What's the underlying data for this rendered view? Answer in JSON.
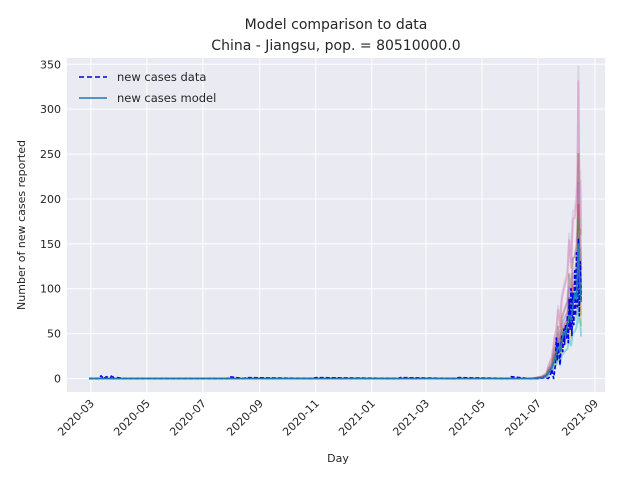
{
  "chart_data": {
    "type": "line",
    "title": "Model comparison to data",
    "subtitle": "China - Jiangsu, pop. = 80510000.0",
    "xlabel": "Day",
    "ylabel": "Number of new cases reported",
    "ylim": [
      -15,
      357
    ],
    "xlim": [
      "2020-02-04",
      "2021-09-12"
    ],
    "grid": true,
    "legend_position": "top-left",
    "x_ticks": [
      "2020-03",
      "2020-05",
      "2020-07",
      "2020-09",
      "2020-11",
      "2021-01",
      "2021-03",
      "2021-05",
      "2021-07",
      "2021-09"
    ],
    "y_ticks": [
      0,
      50,
      100,
      150,
      200,
      250,
      300,
      350
    ],
    "series": [
      {
        "name": "new cases data",
        "style": "dashed",
        "color": "#0000ee",
        "x": [
          "2020-02-28",
          "2020-03-10",
          "2020-03-12",
          "2020-03-15",
          "2020-03-18",
          "2020-03-22",
          "2020-03-24",
          "2020-03-26",
          "2020-03-30",
          "2020-04-05",
          "2020-04-20",
          "2020-07-28",
          "2020-07-30",
          "2020-08-15",
          "2020-08-17",
          "2020-10-28",
          "2020-11-01",
          "2021-01-30",
          "2021-02-01",
          "2021-04-02",
          "2021-04-05",
          "2021-05-31",
          "2021-06-02",
          "2021-06-20",
          "2021-07-01",
          "2021-07-08",
          "2021-07-12",
          "2021-07-14",
          "2021-07-16",
          "2021-07-18",
          "2021-07-20",
          "2021-07-21",
          "2021-07-22",
          "2021-07-23",
          "2021-07-24",
          "2021-07-25",
          "2021-07-26",
          "2021-07-27",
          "2021-07-28",
          "2021-07-29",
          "2021-07-30",
          "2021-07-31",
          "2021-08-01",
          "2021-08-02",
          "2021-08-03",
          "2021-08-04",
          "2021-08-05",
          "2021-08-06",
          "2021-08-07",
          "2021-08-08",
          "2021-08-09",
          "2021-08-10",
          "2021-08-11",
          "2021-08-12",
          "2021-08-13",
          "2021-08-14",
          "2021-08-15",
          "2021-08-16",
          "2021-08-17"
        ],
        "values": [
          0,
          0,
          3,
          0,
          2,
          0,
          4,
          0,
          1,
          0,
          0,
          0,
          2,
          0,
          1,
          0,
          1,
          0,
          1,
          0,
          1,
          0,
          2,
          0,
          0,
          1,
          0,
          2,
          10,
          0,
          15,
          45,
          20,
          40,
          28,
          15,
          35,
          48,
          30,
          55,
          38,
          60,
          45,
          70,
          40,
          88,
          55,
          100,
          48,
          95,
          60,
          120,
          70,
          140,
          80,
          155,
          70,
          130,
          88
        ],
        "show_every_point": false
      },
      {
        "name": "new cases model",
        "style": "solid",
        "color": "#1f77b4",
        "x": [
          "2020-02-28",
          "2020-06-01",
          "2020-10-01",
          "2021-02-01",
          "2021-06-01",
          "2021-06-25",
          "2021-07-05",
          "2021-07-10",
          "2021-07-13",
          "2021-07-16",
          "2021-07-19",
          "2021-07-21",
          "2021-07-23",
          "2021-07-25",
          "2021-07-27",
          "2021-07-29",
          "2021-07-31",
          "2021-08-02",
          "2021-08-04",
          "2021-08-06",
          "2021-08-08",
          "2021-08-10",
          "2021-08-12",
          "2021-08-13",
          "2021-08-14",
          "2021-08-15",
          "2021-08-16",
          "2021-08-17"
        ],
        "values": [
          0,
          0,
          0,
          0,
          0,
          0,
          1,
          3,
          7,
          12,
          20,
          28,
          35,
          30,
          40,
          52,
          48,
          60,
          70,
          65,
          80,
          95,
          88,
          120,
          150,
          115,
          100,
          85
        ]
      }
    ],
    "ensemble_band_colors": [
      "#bfbfbf",
      "#e377c2",
      "#8c564b",
      "#9467bd",
      "#d62728",
      "#2ca02c",
      "#ff7f0e",
      "#bcbd22",
      "#17becf"
    ]
  }
}
